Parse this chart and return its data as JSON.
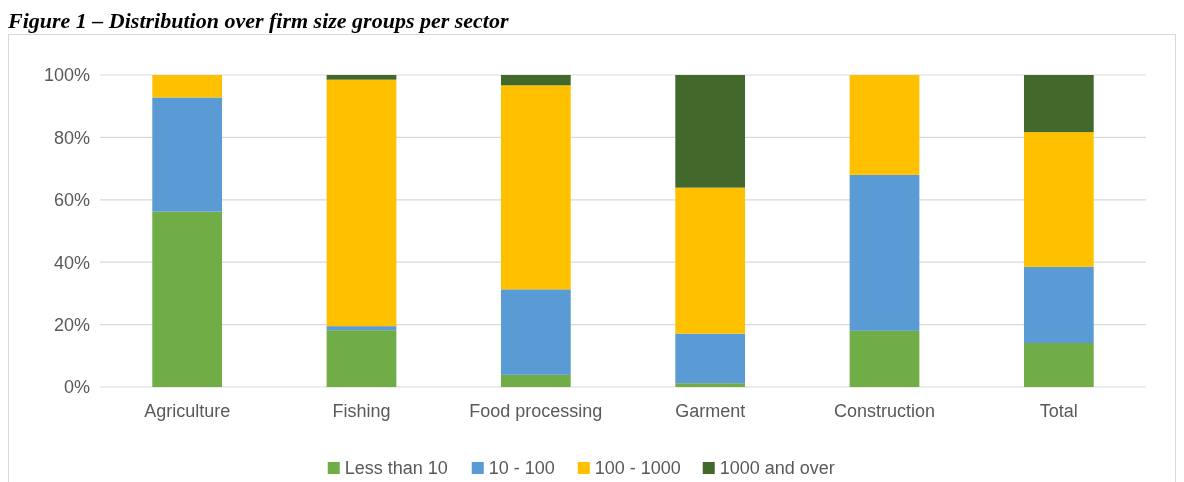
{
  "chart_data": {
    "type": "bar",
    "stacked": true,
    "title": "Figure 1 – Distribution over firm size groups per sector",
    "categories": [
      "Agriculture",
      "Fishing",
      "Food processing",
      "Garment",
      "Construction",
      "Total"
    ],
    "series": [
      {
        "name": "Less than 10",
        "color": "#70ad47",
        "values": [
          56.2,
          18.2,
          3.9,
          1.2,
          18.0,
          14.1
        ]
      },
      {
        "name": "10 - 100",
        "color": "#5b9bd5",
        "values": [
          36.6,
          1.3,
          27.4,
          15.9,
          50.0,
          24.4
        ]
      },
      {
        "name": "100 - 1000",
        "color": "#ffc000",
        "values": [
          7.2,
          79.0,
          65.4,
          46.8,
          32.0,
          43.2
        ]
      },
      {
        "name": "1000 and over",
        "color": "#43682b",
        "values": [
          0,
          1.5,
          3.3,
          36.1,
          0,
          18.3
        ]
      }
    ],
    "ylim": [
      0,
      100
    ],
    "yticks": [
      {
        "value": 0,
        "label": "0%"
      },
      {
        "value": 20,
        "label": "20%"
      },
      {
        "value": 40,
        "label": "40%"
      },
      {
        "value": 60,
        "label": "60%"
      },
      {
        "value": 80,
        "label": "80%"
      },
      {
        "value": 100,
        "label": "100%"
      }
    ],
    "grid": "y",
    "legend": "bottom"
  }
}
